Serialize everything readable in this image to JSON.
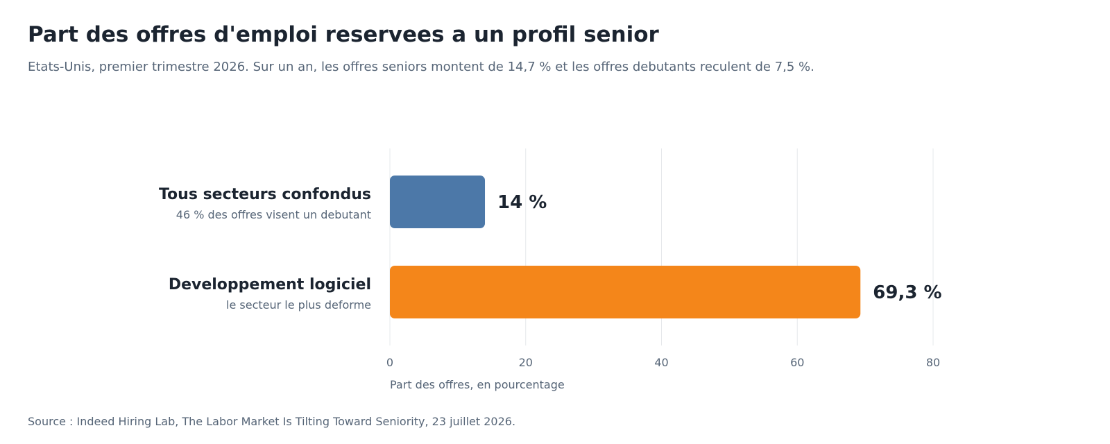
{
  "header": {
    "title": "Part des offres d'emploi reservees a un profil senior",
    "subtitle": "Etats-Unis, premier trimestre 2026. Sur un an, les offres seniors montent de 14,7 % et les offres debutants reculent de 7,5 %."
  },
  "footer": {
    "source": "Source : Indeed Hiring Lab, The Labor Market Is Tilting Toward Seniority, 23 juillet 2026."
  },
  "chart_data": {
    "type": "bar",
    "orientation": "horizontal",
    "categories": [
      "Tous secteurs confondus",
      "Developpement logiciel"
    ],
    "category_notes": [
      "46 % des offres visent un debutant",
      "le secteur le plus deforme"
    ],
    "values": [
      14,
      69.3
    ],
    "value_labels": [
      "14 %",
      "69,3 %"
    ],
    "bar_colors": [
      "#4c78a8",
      "#f4861a"
    ],
    "xlim": [
      0,
      80
    ],
    "xticks": [
      0,
      20,
      40,
      60,
      80
    ],
    "xtick_labels": [
      "0",
      "20",
      "40",
      "60",
      "80"
    ],
    "xlabel": "Part des offres, en pourcentage",
    "ylabel": "",
    "grid": "vertical"
  }
}
